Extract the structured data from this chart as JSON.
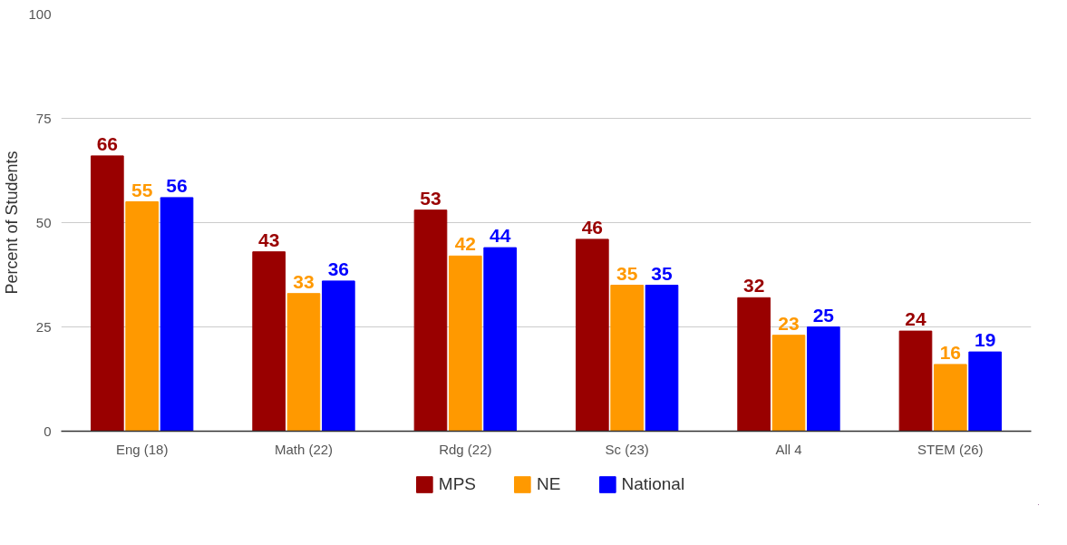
{
  "chart_data": {
    "type": "bar",
    "ylabel": "Percent of Students",
    "categories": [
      "Eng (18)",
      "Math (22)",
      "Rdg (22)",
      "Sc (23)",
      "All 4",
      "STEM (26)"
    ],
    "series": [
      {
        "name": "MPS",
        "color": "#990000",
        "values": [
          66,
          43,
          53,
          46,
          32,
          24
        ]
      },
      {
        "name": "NE",
        "color": "#ff9900",
        "values": [
          55,
          33,
          42,
          35,
          23,
          16
        ]
      },
      {
        "name": "National",
        "color": "#0000ff",
        "values": [
          56,
          36,
          44,
          35,
          25,
          19
        ]
      }
    ],
    "ylim": [
      0,
      100
    ],
    "yticks": [
      0,
      25,
      50,
      75,
      100
    ],
    "grid": "y",
    "legend": "bottom",
    "data_labels": true
  }
}
